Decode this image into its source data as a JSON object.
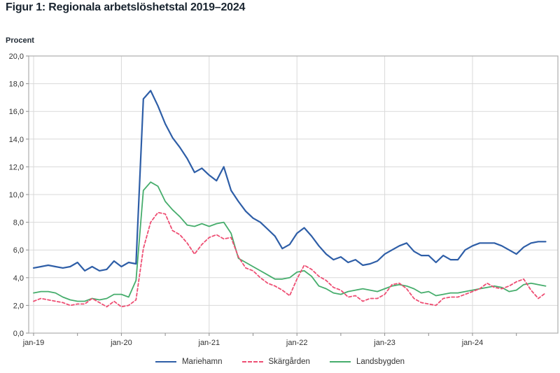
{
  "title": "Figur 1: Regionala arbetslöshetstal 2019–2024",
  "chart_data": {
    "type": "line",
    "title": "Figur 1: Regionala arbetslöshetstal 2019–2024",
    "xlabel": "",
    "ylabel": "Procent",
    "ylim": [
      0,
      20
    ],
    "ytick_step": 2,
    "y_ticks": [
      "0,0",
      "2,0",
      "4,0",
      "6,0",
      "8,0",
      "10,0",
      "12,0",
      "14,0",
      "16,0",
      "18,0",
      "20,0"
    ],
    "x_ticks": [
      "jan-19",
      "jan-20",
      "jan-21",
      "jan-22",
      "jan-23",
      "jan-24"
    ],
    "x_tick_months": [
      0,
      12,
      24,
      36,
      48,
      60
    ],
    "x_start": "jan-2019",
    "x_end": "nov-2024",
    "grid": true,
    "legend_position": "bottom",
    "colors": {
      "grid": "#d9d9d9",
      "border": "#b3b3b3",
      "tick": "#8c8c8c",
      "text": "#333333"
    },
    "series": [
      {
        "name": "Mariehamn",
        "color": "#2e5ea7",
        "style": "solid",
        "values": [
          4.7,
          4.8,
          4.9,
          4.8,
          4.7,
          4.8,
          5.1,
          4.5,
          4.8,
          4.5,
          4.6,
          5.2,
          4.8,
          5.1,
          5.0,
          16.9,
          17.5,
          16.4,
          15.1,
          14.1,
          13.4,
          12.6,
          11.6,
          11.9,
          11.4,
          11.0,
          12.0,
          10.3,
          9.5,
          8.8,
          8.3,
          8.0,
          7.5,
          7.0,
          6.1,
          6.4,
          7.2,
          7.6,
          7.0,
          6.3,
          5.7,
          5.3,
          5.5,
          5.1,
          5.3,
          4.9,
          5.0,
          5.2,
          5.7,
          6.0,
          6.3,
          6.5,
          5.9,
          5.6,
          5.6,
          5.1,
          5.6,
          5.3,
          5.3,
          6.0,
          6.3,
          6.5,
          6.5,
          6.5,
          6.3,
          6.0,
          5.7,
          6.2,
          6.5,
          6.6,
          6.6
        ]
      },
      {
        "name": "Skärgården",
        "color": "#ee4e73",
        "style": "dashed",
        "values": [
          2.3,
          2.5,
          2.4,
          2.3,
          2.2,
          2.0,
          2.1,
          2.1,
          2.5,
          2.2,
          1.9,
          2.3,
          1.9,
          2.0,
          2.4,
          6.1,
          8.0,
          8.7,
          8.6,
          7.4,
          7.1,
          6.5,
          5.7,
          6.4,
          6.9,
          7.1,
          6.8,
          6.9,
          5.5,
          4.7,
          4.5,
          4.0,
          3.6,
          3.4,
          3.1,
          2.7,
          3.9,
          4.9,
          4.6,
          4.1,
          3.8,
          3.3,
          3.1,
          2.6,
          2.7,
          2.3,
          2.5,
          2.5,
          2.8,
          3.5,
          3.6,
          3.2,
          2.5,
          2.2,
          2.1,
          2.0,
          2.5,
          2.6,
          2.6,
          2.8,
          3.0,
          3.2,
          3.6,
          3.3,
          3.2,
          3.4,
          3.7,
          3.9,
          3.1,
          2.5,
          2.9
        ]
      },
      {
        "name": "Landsbygden",
        "color": "#46ad6c",
        "style": "solid",
        "values": [
          2.9,
          3.0,
          3.0,
          2.9,
          2.6,
          2.4,
          2.3,
          2.3,
          2.5,
          2.4,
          2.5,
          2.8,
          2.8,
          2.6,
          3.8,
          10.3,
          10.9,
          10.6,
          9.5,
          8.9,
          8.4,
          7.8,
          7.7,
          7.9,
          7.7,
          7.9,
          8.0,
          7.2,
          5.4,
          5.1,
          4.8,
          4.5,
          4.2,
          3.9,
          3.9,
          4.0,
          4.4,
          4.5,
          4.1,
          3.4,
          3.2,
          2.9,
          2.8,
          3.0,
          3.1,
          3.2,
          3.1,
          3.0,
          3.2,
          3.4,
          3.5,
          3.4,
          3.2,
          2.9,
          3.0,
          2.7,
          2.8,
          2.9,
          2.9,
          3.0,
          3.1,
          3.2,
          3.3,
          3.4,
          3.3,
          3.0,
          3.1,
          3.5,
          3.6,
          3.5,
          3.4
        ]
      }
    ]
  }
}
